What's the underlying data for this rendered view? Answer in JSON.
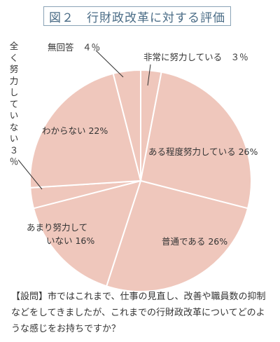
{
  "title": {
    "number": "図２",
    "text": "行財政改革に対する評価"
  },
  "chart_data": {
    "type": "pie",
    "title": "行財政改革に対する評価",
    "start_angle_deg": 0,
    "direction": "clockwise",
    "slice_color": "#efc7bc",
    "edge_color": "#ffffff",
    "slices": [
      {
        "label": "非常に努力している",
        "value": 3,
        "display": "非常に努力している　３％"
      },
      {
        "label": "ある程度努力している",
        "value": 26,
        "display": "ある程度努力している 26%"
      },
      {
        "label": "普通である",
        "value": 26,
        "display": "普通である 26%"
      },
      {
        "label": "あまり努力していない",
        "value": 16,
        "display": [
          "あまり努力して",
          "いない 16%"
        ]
      },
      {
        "label": "全く努力していない",
        "value": 3,
        "display": "全く努力していない ３％"
      },
      {
        "label": "わからない",
        "value": 22,
        "display": "わからない 22%"
      },
      {
        "label": "無回答",
        "value": 4,
        "display": "無回答　４％"
      }
    ]
  },
  "question": {
    "prefix": "【設問】",
    "text": "市ではこれまで、仕事の見直し、改善や職員数の抑制などをしてきましたが、これまでの行財政改革についてどのような感じをお持ちですか？"
  }
}
